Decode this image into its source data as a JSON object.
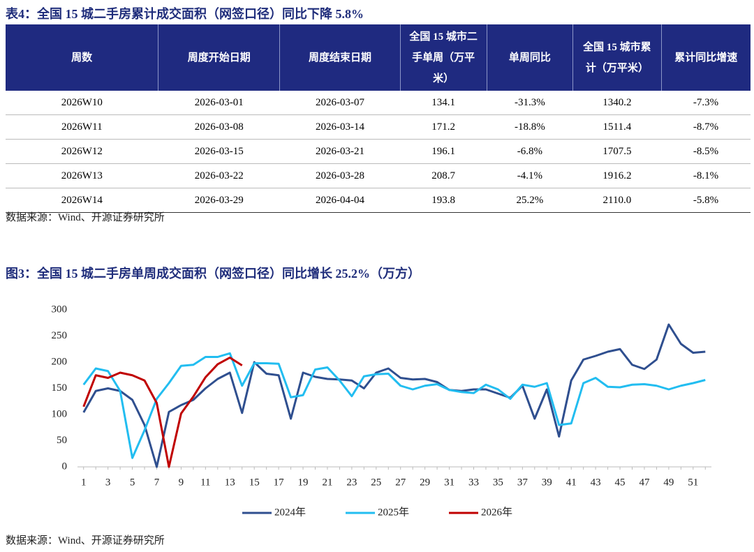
{
  "table": {
    "title": "表4：全国 15 城二手房累计成交面积（网签口径）同比下降 5.8%",
    "header": [
      "周数",
      "周度开始日期",
      "周度结束日期",
      "全国 15 城市二手单周（万平米）",
      "单周同比",
      "全国 15 城市累计（万平米）",
      "累计同比增速"
    ],
    "rows": [
      [
        "2026W10",
        "2026-03-01",
        "2026-03-07",
        "134.1",
        "-31.3%",
        "1340.2",
        "-7.3%"
      ],
      [
        "2026W11",
        "2026-03-08",
        "2026-03-14",
        "171.2",
        "-18.8%",
        "1511.4",
        "-8.7%"
      ],
      [
        "2026W12",
        "2026-03-15",
        "2026-03-21",
        "196.1",
        "-6.8%",
        "1707.5",
        "-8.5%"
      ],
      [
        "2026W13",
        "2026-03-22",
        "2026-03-28",
        "208.7",
        "-4.1%",
        "1916.2",
        "-8.1%"
      ],
      [
        "2026W14",
        "2026-03-29",
        "2026-04-04",
        "193.8",
        "25.2%",
        "2110.0",
        "-5.8%"
      ]
    ],
    "source": "数据来源：Wind、开源证券研究所"
  },
  "chart_data": {
    "type": "line",
    "title": "图3：全国 15 城二手房单周成交面积（网签口径）同比增长 25.2%（万方）",
    "x": [
      1,
      2,
      3,
      4,
      5,
      6,
      7,
      8,
      9,
      10,
      11,
      12,
      13,
      14,
      15,
      16,
      17,
      18,
      19,
      20,
      21,
      22,
      23,
      24,
      25,
      26,
      27,
      28,
      29,
      30,
      31,
      32,
      33,
      34,
      35,
      36,
      37,
      38,
      39,
      40,
      41,
      42,
      43,
      44,
      45,
      46,
      47,
      48,
      49,
      50,
      51,
      52
    ],
    "series": [
      {
        "name": "2024年",
        "color": "#2f4f8f",
        "values": [
          104,
          145,
          150,
          145,
          128,
          80,
          0,
          105,
          118,
          128,
          150,
          168,
          180,
          103,
          200,
          178,
          175,
          92,
          180,
          172,
          168,
          167,
          165,
          150,
          180,
          188,
          170,
          167,
          168,
          162,
          147,
          145,
          148,
          148,
          140,
          132,
          155,
          92,
          148,
          58,
          165,
          205,
          212,
          220,
          225,
          195,
          187,
          205,
          272,
          235,
          218,
          220
        ]
      },
      {
        "name": "2025年",
        "color": "#22bdf0",
        "values": [
          157,
          188,
          183,
          145,
          17,
          70,
          130,
          160,
          193,
          195,
          210,
          210,
          217,
          155,
          198,
          198,
          197,
          133,
          137,
          186,
          190,
          165,
          135,
          173,
          177,
          178,
          155,
          148,
          155,
          158,
          147,
          143,
          141,
          157,
          148,
          130,
          157,
          153,
          160,
          80,
          83,
          160,
          170,
          153,
          152,
          157,
          158,
          155,
          148,
          155,
          160,
          166
        ]
      },
      {
        "name": "2026年",
        "color": "#c00000",
        "values": [
          115,
          175,
          170,
          180,
          175,
          165,
          122,
          0,
          102,
          134.1,
          171.2,
          196.1,
          208.7,
          193.8,
          null,
          null,
          null,
          null,
          null,
          null,
          null,
          null,
          null,
          null,
          null,
          null,
          null,
          null,
          null,
          null,
          null,
          null,
          null,
          null,
          null,
          null,
          null,
          null,
          null,
          null,
          null,
          null,
          null,
          null,
          null,
          null,
          null,
          null,
          null,
          null,
          null,
          null
        ]
      }
    ],
    "xlim": [
      0.5,
      52.5
    ],
    "xticks": [
      1,
      3,
      5,
      7,
      9,
      11,
      13,
      15,
      17,
      19,
      21,
      23,
      25,
      27,
      29,
      31,
      33,
      35,
      37,
      39,
      41,
      43,
      45,
      47,
      49,
      51
    ],
    "ylim": [
      0,
      300
    ],
    "yticks": [
      0,
      50,
      100,
      150,
      200,
      250,
      300
    ],
    "grid": false,
    "legend": "bottom",
    "source": "数据来源：Wind、开源证券研究所"
  }
}
